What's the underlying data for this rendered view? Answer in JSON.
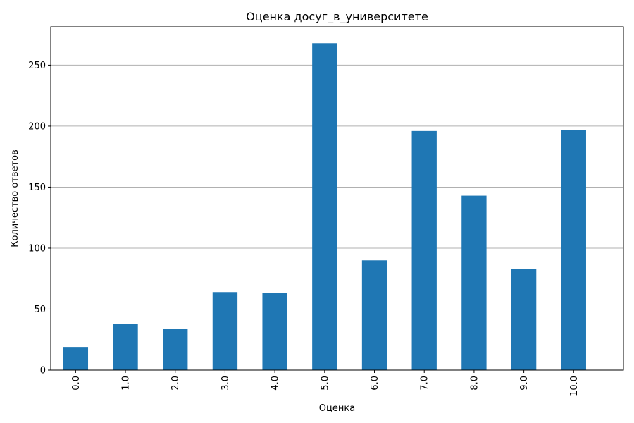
{
  "chart_data": {
    "type": "bar",
    "title": "Оценка досуг_в_университете",
    "xlabel": "Оценка",
    "ylabel": "Количество ответов",
    "categories": [
      "0.0",
      "1.0",
      "2.0",
      "3.0",
      "4.0",
      "5.0",
      "6.0",
      "7.0",
      "8.0",
      "9.0",
      "10.0"
    ],
    "values": [
      19,
      38,
      34,
      64,
      63,
      268,
      90,
      196,
      143,
      83,
      197
    ],
    "ylim": [
      0,
      281.45
    ],
    "yticks": [
      0,
      50,
      100,
      150,
      200,
      250
    ],
    "grid": "y",
    "colors": {
      "bar": "#1f77b4",
      "grid": "#b0b0b0",
      "axis": "#000000"
    }
  }
}
